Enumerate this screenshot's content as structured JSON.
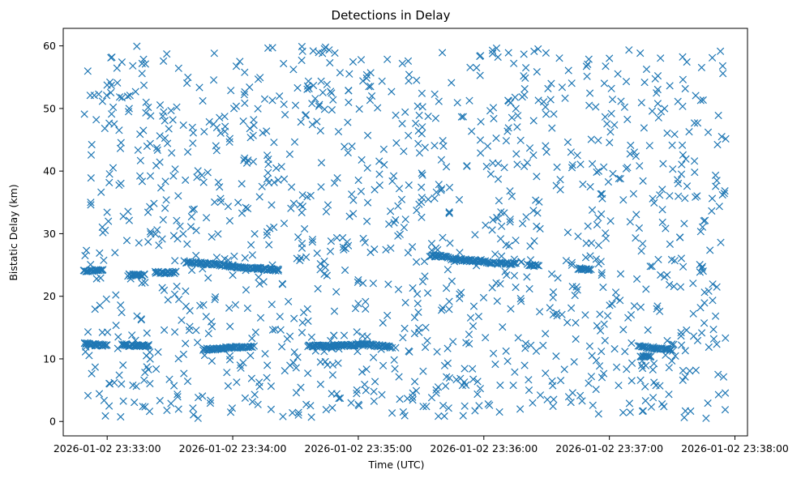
{
  "chart_data": {
    "type": "scatter",
    "title": "Detections in Delay",
    "xlabel": "Time (UTC)",
    "ylabel": "Bistatic Delay (km)",
    "marker": "x",
    "color": "#1f77b4",
    "grid": false,
    "legend": "none",
    "xlim": [
      "2026-01-02 23:32:39",
      "2026-01-02 23:38:06"
    ],
    "ylim": [
      -2.3,
      62.8
    ],
    "x_ticks": [
      "2026-01-02 23:33:00",
      "2026-01-02 23:34:00",
      "2026-01-02 23:35:00",
      "2026-01-02 23:36:00",
      "2026-01-02 23:37:00",
      "2026-01-02 23:38:00"
    ],
    "y_ticks": [
      "0",
      "10",
      "20",
      "30",
      "40",
      "50",
      "60"
    ],
    "track_series": [
      {
        "x": [
          "23:32:49",
          "23:32:58"
        ],
        "y": [
          24.1,
          24.1
        ]
      },
      {
        "x": [
          "23:33:10",
          "23:33:18"
        ],
        "y": [
          23.4,
          23.4
        ]
      },
      {
        "x": [
          "23:33:23",
          "23:33:33"
        ],
        "y": [
          23.8,
          23.8
        ]
      },
      {
        "x": [
          "23:33:37",
          "23:34:00"
        ],
        "y": [
          25.5,
          24.8
        ]
      },
      {
        "x": [
          "23:34:00",
          "23:34:22"
        ],
        "y": [
          24.7,
          24.2
        ]
      },
      {
        "x": [
          "23:34:12",
          "23:34:12"
        ],
        "y": [
          24.5,
          24.5
        ]
      },
      {
        "x": [
          "23:35:35",
          "23:35:43"
        ],
        "y": [
          26.5,
          26.3
        ]
      },
      {
        "x": [
          "23:35:44",
          "23:36:09"
        ],
        "y": [
          26.0,
          25.2
        ]
      },
      {
        "x": [
          "23:36:10",
          "23:36:15"
        ],
        "y": [
          25.3,
          25.2
        ]
      },
      {
        "x": [
          "23:36:21",
          "23:36:26"
        ],
        "y": [
          25.0,
          24.9
        ]
      },
      {
        "x": [
          "23:36:45",
          "23:36:51"
        ],
        "y": [
          24.4,
          24.2
        ]
      },
      {
        "x": [
          "23:32:49",
          "23:33:00"
        ],
        "y": [
          12.4,
          12.1
        ]
      },
      {
        "x": [
          "23:33:07",
          "23:33:20"
        ],
        "y": [
          12.2,
          12.1
        ]
      },
      {
        "x": [
          "23:33:46",
          "23:34:10"
        ],
        "y": [
          11.5,
          12.0
        ]
      },
      {
        "x": [
          "23:34:36",
          "23:34:48"
        ],
        "y": [
          12.1,
          12.0
        ]
      },
      {
        "x": [
          "23:34:48",
          "23:35:00"
        ],
        "y": [
          12.1,
          12.2
        ]
      },
      {
        "x": [
          "23:35:00",
          "23:35:16"
        ],
        "y": [
          12.4,
          11.9
        ]
      },
      {
        "x": [
          "23:37:14",
          "23:37:30"
        ],
        "y": [
          12.0,
          11.4
        ]
      },
      {
        "x": [
          "23:37:15",
          "23:37:20"
        ],
        "y": [
          10.4,
          10.4
        ]
      }
    ],
    "noise_count": 1260,
    "x_range": [
      "2026-01-02 23:32:49",
      "2026-01-02 23:37:56"
    ],
    "y_range": [
      0.5,
      60
    ]
  }
}
